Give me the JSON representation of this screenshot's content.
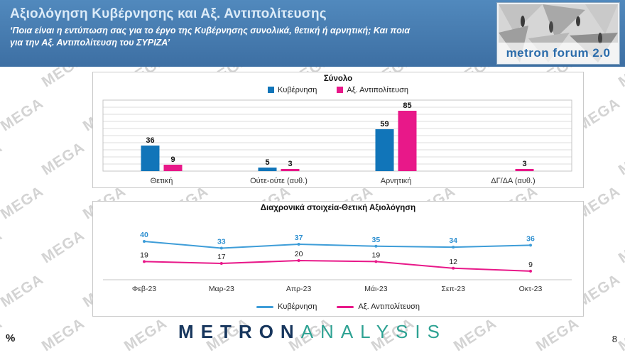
{
  "watermark": {
    "text": "MEGA"
  },
  "header": {
    "title": "Αξιολόγηση Κυβέρνησης και Αξ. Αντιπολίτευσης",
    "subtitle": "‘Ποια είναι η εντύπωση σας για το έργο της Κυβέρνησης συνολικά, θετική ή αρνητική; Και ποια\nγια την Αξ. Αντιπολίτευση του ΣΥΡΙΖΑ’",
    "logo_text": "metron forum 2.0"
  },
  "chart_data": [
    {
      "type": "bar",
      "title": "Σύνολο",
      "categories": [
        "Θετική",
        "Ούτε-ούτε (αυθ.)",
        "Αρνητική",
        "ΔΓ/ΔΑ (αυθ.)"
      ],
      "series": [
        {
          "name": "Κυβέρνηση",
          "color": "#1175b9",
          "values": [
            36,
            5,
            59,
            null
          ]
        },
        {
          "name": "Αξ. Αντιπολίτευση",
          "color": "#e81889",
          "values": [
            9,
            3,
            85,
            3
          ]
        }
      ],
      "ylim": [
        0,
        100
      ],
      "grid": true,
      "legend_position": "top"
    },
    {
      "type": "line",
      "title": "Διαχρονικά στοιχεία-Θετική Αξιολόγηση",
      "x": [
        "Φεβ-23",
        "Μαρ-23",
        "Απρ-23",
        "Μάι-23",
        "Σεπ-23",
        "Οκτ-23"
      ],
      "series": [
        {
          "name": "Κυβέρνηση",
          "color": "#3e9dd8",
          "label_color": "#2d8fd0",
          "values": [
            40,
            33,
            37,
            35,
            34,
            36
          ]
        },
        {
          "name": "Αξ. Αντιπολίτευση",
          "color": "#e81889",
          "label_color": "#222222",
          "values": [
            19,
            17,
            20,
            19,
            12,
            9
          ]
        }
      ],
      "ylim": [
        0,
        45
      ],
      "grid": false,
      "legend_position": "bottom"
    }
  ],
  "footer": {
    "percent": "%",
    "brand_metron": "METRON",
    "brand_analysis": "ANALYSIS",
    "page_number": "8"
  }
}
